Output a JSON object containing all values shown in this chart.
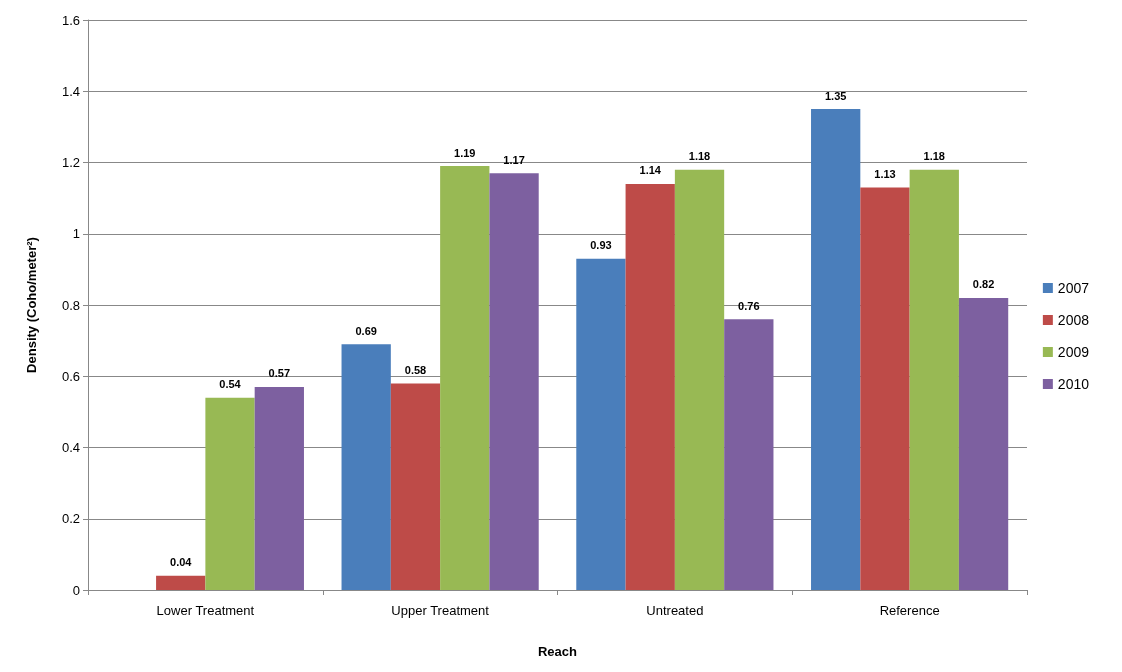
{
  "chart_data": {
    "type": "bar",
    "xlabel": "Reach",
    "ylabel": "Density (Coho/meter²)",
    "categories": [
      "Lower Treatment",
      "Upper Treatment",
      "Untreated",
      "Reference"
    ],
    "series": [
      {
        "name": "2007",
        "color": "#4a7ebb",
        "values": [
          null,
          0.69,
          0.93,
          1.35
        ]
      },
      {
        "name": "2008",
        "color": "#be4b48",
        "values": [
          0.04,
          0.58,
          1.14,
          1.13
        ]
      },
      {
        "name": "2009",
        "color": "#98b954",
        "values": [
          0.54,
          1.19,
          1.18,
          1.18
        ]
      },
      {
        "name": "2010",
        "color": "#7d60a0",
        "values": [
          0.57,
          1.17,
          0.76,
          0.82
        ]
      }
    ],
    "ylim": [
      0,
      1.6
    ],
    "yticks": [
      0,
      0.2,
      0.4,
      0.6,
      0.8,
      1,
      1.2,
      1.4,
      1.6
    ],
    "grid": "y",
    "legend": "right",
    "data_labels": true
  }
}
